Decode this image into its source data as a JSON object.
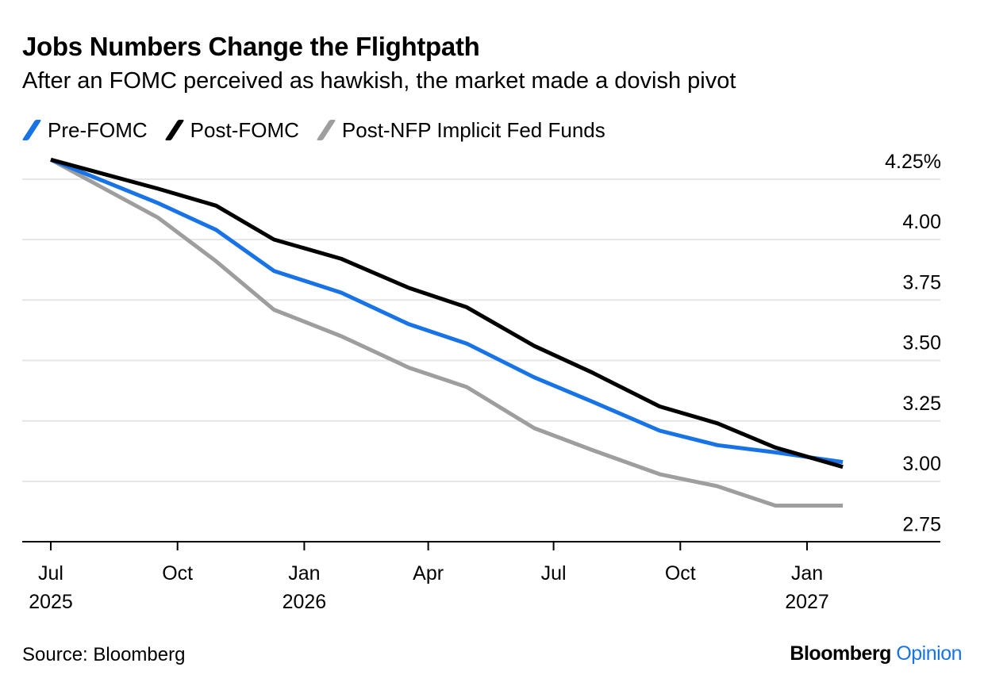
{
  "header": {
    "title": "Jobs Numbers Change the Flightpath",
    "subtitle": "After an FOMC perceived as hawkish, the market made a dovish pivot"
  },
  "legend": [
    {
      "label": "Pre-FOMC",
      "color": "#1874e6"
    },
    {
      "label": "Post-FOMC",
      "color": "#000000"
    },
    {
      "label": "Post-NFP Implicit Fed Funds",
      "color": "#9e9e9e"
    }
  ],
  "footer": {
    "source": "Source: Bloomberg",
    "brand_main": "Bloomberg",
    "brand_accent": "Opinion"
  },
  "chart_data": {
    "type": "line",
    "ylim": [
      2.75,
      4.25
    ],
    "yticks": [
      {
        "value": 4.25,
        "label": "4.25%"
      },
      {
        "value": 4.0,
        "label": "4.00"
      },
      {
        "value": 3.75,
        "label": "3.75"
      },
      {
        "value": 3.5,
        "label": "3.50"
      },
      {
        "value": 3.25,
        "label": "3.25"
      },
      {
        "value": 3.0,
        "label": "3.00"
      },
      {
        "value": 2.75,
        "label": "2.75"
      }
    ],
    "xlim": [
      "2025-06-20",
      "2027-04-08"
    ],
    "xticks": [
      {
        "date": "2025-07-01",
        "line1": "Jul",
        "line2": "2025"
      },
      {
        "date": "2025-10-01",
        "line1": "Oct",
        "line2": ""
      },
      {
        "date": "2026-01-01",
        "line1": "Jan",
        "line2": "2026"
      },
      {
        "date": "2026-04-01",
        "line1": "Apr",
        "line2": ""
      },
      {
        "date": "2026-07-01",
        "line1": "Jul",
        "line2": ""
      },
      {
        "date": "2026-10-01",
        "line1": "Oct",
        "line2": ""
      },
      {
        "date": "2027-01-01",
        "line1": "Jan",
        "line2": "2027"
      }
    ],
    "x": [
      "2025-07-01",
      "2025-09-17",
      "2025-10-29",
      "2025-12-10",
      "2026-01-28",
      "2026-03-18",
      "2026-04-29",
      "2026-06-17",
      "2026-07-29",
      "2026-09-16",
      "2026-10-28",
      "2026-12-09",
      "2027-01-27"
    ],
    "grid": true,
    "legend_position": "top-left",
    "series": [
      {
        "name": "Pre-FOMC",
        "color": "#1874e6",
        "values": [
          4.33,
          4.15,
          4.04,
          3.87,
          3.78,
          3.65,
          3.57,
          3.43,
          3.33,
          3.21,
          3.15,
          3.12,
          3.08
        ]
      },
      {
        "name": "Post-FOMC",
        "color": "#000000",
        "values": [
          4.33,
          4.21,
          4.14,
          4.0,
          3.92,
          3.8,
          3.72,
          3.56,
          3.45,
          3.31,
          3.24,
          3.14,
          3.06
        ]
      },
      {
        "name": "Post-NFP Implicit Fed Funds",
        "color": "#9e9e9e",
        "values": [
          4.33,
          4.09,
          3.91,
          3.71,
          3.6,
          3.47,
          3.39,
          3.22,
          3.13,
          3.03,
          2.98,
          2.9,
          2.9
        ]
      }
    ]
  }
}
